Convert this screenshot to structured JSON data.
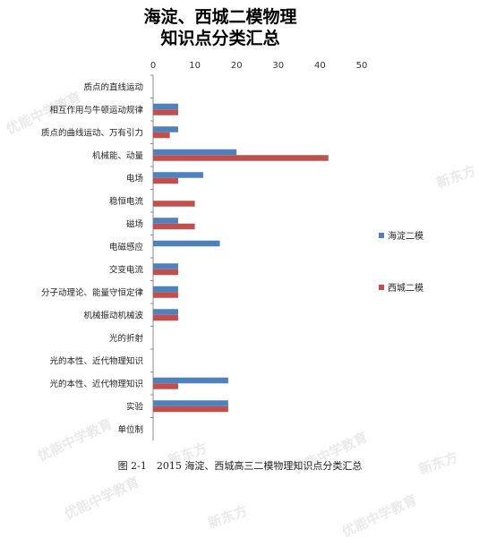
{
  "chart_data": {
    "type": "bar",
    "orientation": "horizontal",
    "title_lines": [
      "海淀、西城二模物理",
      "知识点分类汇总"
    ],
    "categories": [
      "质点的直线运动",
      "相互作用与牛顿运动规律",
      "质点的曲线运动、万有引力",
      "机械能、动量",
      "电场",
      "稳恒电流",
      "磁场",
      "电磁感应",
      "交变电流",
      "分子动理论、能量守恒定律",
      "机械振动机械波",
      "光的折射",
      "光的本性、近代物理知识",
      "光的本性、近代物理知识",
      "实验",
      "单位制"
    ],
    "series": [
      {
        "name": "海淀二模",
        "color": "#4f81bd",
        "values": [
          0,
          6,
          6,
          20,
          12,
          0,
          6,
          16,
          6,
          6,
          6,
          0,
          0,
          18,
          18,
          0
        ]
      },
      {
        "name": "西城二模",
        "color": "#c0504d",
        "values": [
          0,
          6,
          4,
          42,
          6,
          10,
          10,
          0,
          6,
          6,
          6,
          0,
          0,
          6,
          18,
          0
        ]
      }
    ],
    "xlim": [
      0,
      50
    ],
    "xticks": [
      0,
      10,
      20,
      30,
      40,
      50
    ],
    "axis_position": "top",
    "grid": false,
    "legend_position": "right"
  },
  "caption": "图 2-1　2015 海淀、西城高三二模物理知识点分类汇总",
  "watermarks": [
    {
      "text": "优能中学教育"
    },
    {
      "text": "新东方"
    }
  ]
}
